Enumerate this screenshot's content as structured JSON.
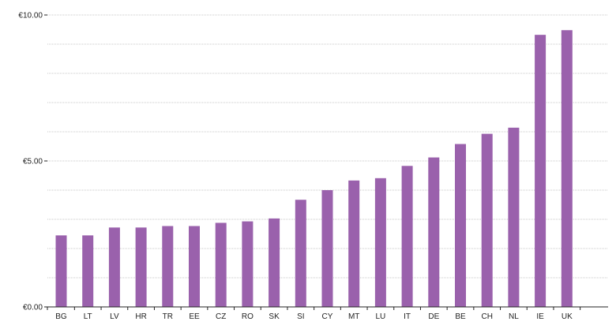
{
  "chart_data": {
    "type": "bar",
    "title": "",
    "xlabel": "",
    "ylabel": "",
    "categories": [
      "BG",
      "LT",
      "LV",
      "HR",
      "TR",
      "EE",
      "CZ",
      "RO",
      "SK",
      "SI",
      "CY",
      "MT",
      "LU",
      "IT",
      "DE",
      "BE",
      "CH",
      "NL",
      "IE",
      "UK"
    ],
    "values": [
      2.45,
      2.45,
      2.72,
      2.72,
      2.77,
      2.77,
      2.88,
      2.93,
      3.03,
      3.67,
      4.0,
      4.33,
      4.41,
      4.83,
      5.12,
      5.58,
      5.93,
      6.14,
      9.32,
      9.48
    ],
    "ylim": [
      0,
      10
    ],
    "y_ticks": [
      0,
      5,
      10
    ],
    "y_tick_labels": [
      "€0.00",
      "€5.00",
      "€10.00"
    ],
    "grid": true,
    "legend": "none",
    "bar_color": "#9a61ac",
    "grid_color": "#c8c8c8",
    "axis_color": "#222222"
  }
}
